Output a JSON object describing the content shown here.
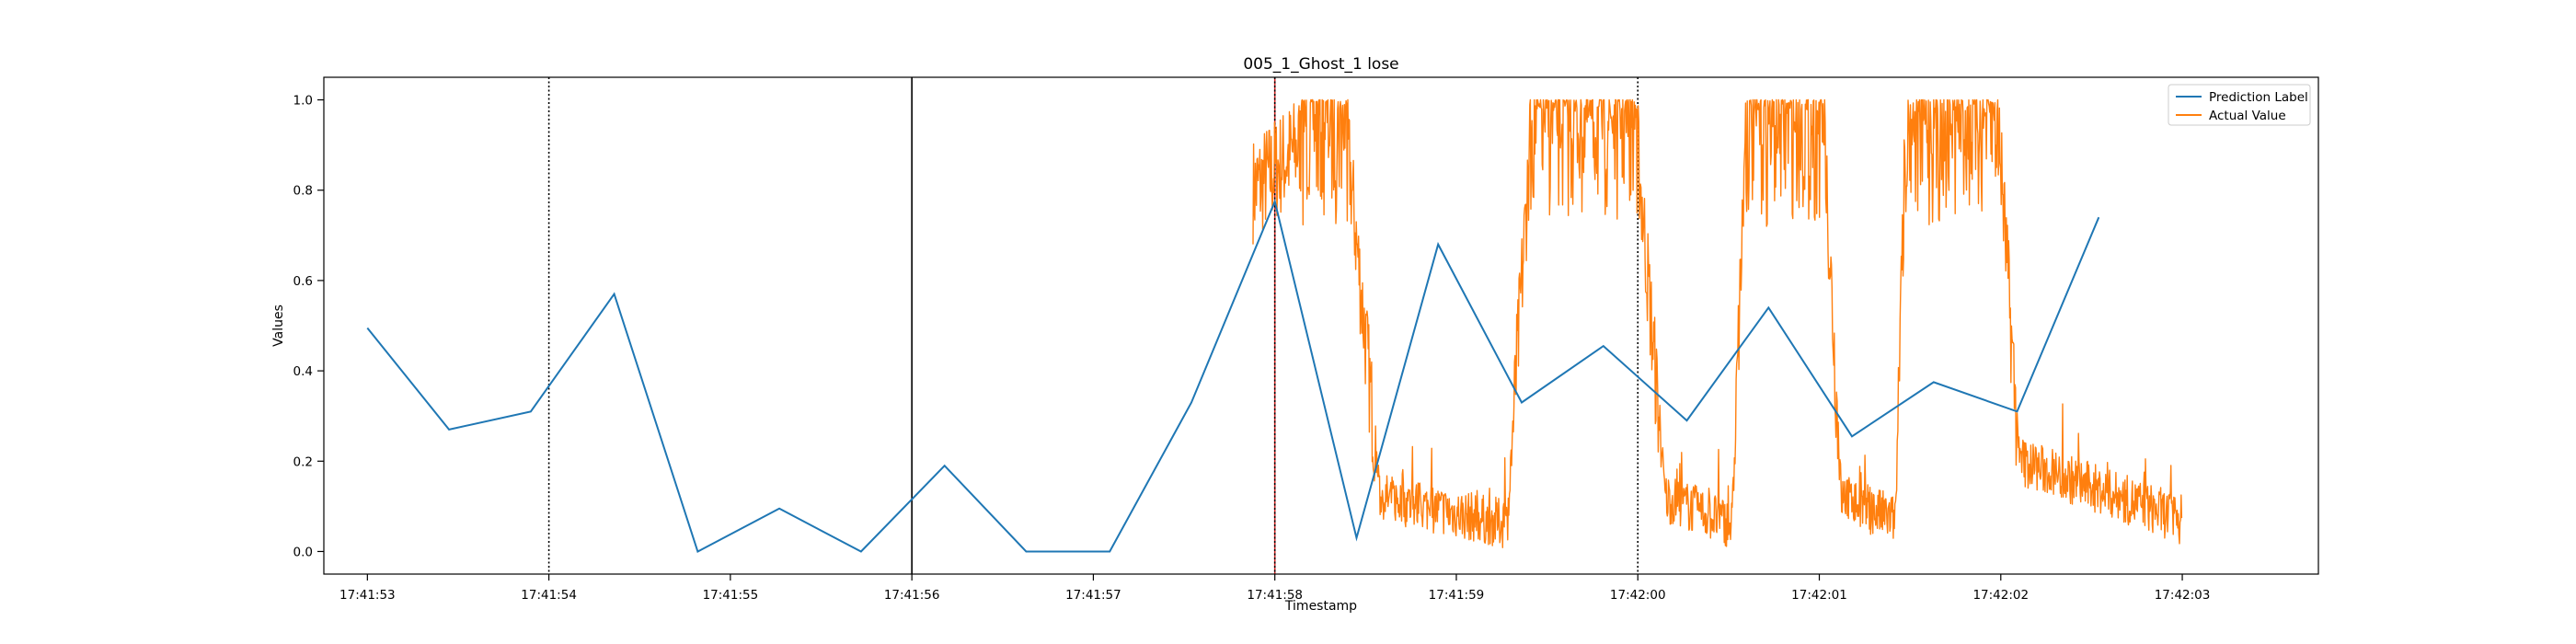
{
  "chart_data": {
    "type": "line",
    "title": "005_1_Ghost_1 lose",
    "xlabel": "Timestamp",
    "ylabel": "Values",
    "xlim": [
      -0.24,
      10.75
    ],
    "ylim": [
      -0.05,
      1.05
    ],
    "x_ticks": [
      {
        "value": 0,
        "label": "17:41:53"
      },
      {
        "value": 1,
        "label": "17:41:54"
      },
      {
        "value": 2,
        "label": "17:41:55"
      },
      {
        "value": 3,
        "label": "17:41:56"
      },
      {
        "value": 4,
        "label": "17:41:57"
      },
      {
        "value": 5,
        "label": "17:41:58"
      },
      {
        "value": 6,
        "label": "17:41:59"
      },
      {
        "value": 7,
        "label": "17:42:00"
      },
      {
        "value": 8,
        "label": "17:42:01"
      },
      {
        "value": 9,
        "label": "17:42:02"
      },
      {
        "value": 10,
        "label": "17:42:03"
      }
    ],
    "y_ticks": [
      {
        "value": 0.0,
        "label": "0.0"
      },
      {
        "value": 0.2,
        "label": "0.2"
      },
      {
        "value": 0.4,
        "label": "0.4"
      },
      {
        "value": 0.6,
        "label": "0.6"
      },
      {
        "value": 0.8,
        "label": "0.8"
      },
      {
        "value": 1.0,
        "label": "1.0"
      }
    ],
    "legend_position": "upper-right",
    "grid": false,
    "vertical_lines": [
      {
        "x": 1.0,
        "style": "dotted",
        "color": "#000000"
      },
      {
        "x": 3.0,
        "style": "solid",
        "color": "#000000"
      },
      {
        "x": 5.0,
        "style": "solid",
        "color": "#d62728"
      },
      {
        "x": 5.0,
        "style": "dotted",
        "color": "#000000"
      },
      {
        "x": 7.0,
        "style": "dotted",
        "color": "#000000"
      }
    ],
    "series": [
      {
        "name": "Prediction Label",
        "color": "#1f77b4",
        "x": [
          0.0,
          0.45,
          0.9,
          1.36,
          1.82,
          2.27,
          2.72,
          3.18,
          3.63,
          4.09,
          4.54,
          5.0,
          5.45,
          5.9,
          6.36,
          6.81,
          7.27,
          7.72,
          8.18,
          8.63,
          9.09,
          9.54
        ],
        "y": [
          0.495,
          0.27,
          0.31,
          0.57,
          0.0,
          0.095,
          0.0,
          0.19,
          0.0,
          0.0,
          0.33,
          0.775,
          0.03,
          0.68,
          0.33,
          0.455,
          0.29,
          0.54,
          0.255,
          0.375,
          0.31,
          0.74
        ]
      },
      {
        "name": "Actual Value",
        "color": "#ff7f0e",
        "segments": [
          {
            "x0": 4.88,
            "x1": 5.38,
            "from": 0.8,
            "to": 0.99
          },
          {
            "x0": 5.38,
            "x1": 5.58,
            "from": 0.99,
            "to": 0.12
          },
          {
            "x0": 5.58,
            "x1": 6.28,
            "from": 0.12,
            "to": 0.06
          },
          {
            "x0": 6.28,
            "x1": 6.42,
            "from": 0.06,
            "to": 0.99
          },
          {
            "x0": 6.42,
            "x1": 6.98,
            "from": 0.99,
            "to": 0.99
          },
          {
            "x0": 6.98,
            "x1": 7.15,
            "from": 0.99,
            "to": 0.12
          },
          {
            "x0": 7.15,
            "x1": 7.52,
            "from": 0.12,
            "to": 0.06
          },
          {
            "x0": 7.52,
            "x1": 7.6,
            "from": 0.06,
            "to": 0.99
          },
          {
            "x0": 7.6,
            "x1": 8.02,
            "from": 0.99,
            "to": 0.99
          },
          {
            "x0": 8.02,
            "x1": 8.12,
            "from": 0.99,
            "to": 0.12
          },
          {
            "x0": 8.12,
            "x1": 8.42,
            "from": 0.12,
            "to": 0.07
          },
          {
            "x0": 8.42,
            "x1": 8.48,
            "from": 0.07,
            "to": 0.99
          },
          {
            "x0": 8.48,
            "x1": 8.98,
            "from": 0.99,
            "to": 0.99
          },
          {
            "x0": 8.98,
            "x1": 9.1,
            "from": 0.99,
            "to": 0.2
          },
          {
            "x0": 9.1,
            "x1": 10.0,
            "from": 0.2,
            "to": 0.07
          }
        ]
      }
    ]
  }
}
